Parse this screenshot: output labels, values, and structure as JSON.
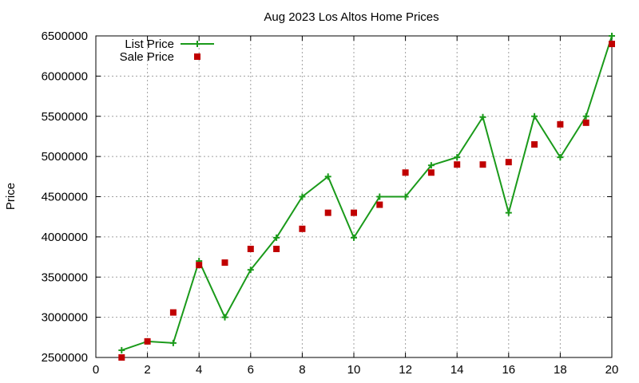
{
  "chart_data": {
    "type": "line",
    "title": "Aug 2023 Los Altos Home Prices",
    "xlabel": "",
    "ylabel": "Price",
    "xlim": [
      0,
      20
    ],
    "ylim": [
      2500000,
      6500000
    ],
    "xticks": [
      0,
      2,
      4,
      6,
      8,
      10,
      12,
      14,
      16,
      18,
      20
    ],
    "yticks": [
      2500000,
      3000000,
      3500000,
      4000000,
      4500000,
      5000000,
      5500000,
      6000000,
      6500000
    ],
    "grid": true,
    "legend_position": "top-left",
    "series": [
      {
        "name": "List Price",
        "style": "line-with-plus-markers",
        "color": "#1a9a1a",
        "x": [
          1,
          2,
          3,
          4,
          5,
          6,
          7,
          8,
          9,
          10,
          11,
          12,
          13,
          14,
          15,
          16,
          17,
          18,
          19,
          20
        ],
        "values": [
          2590000,
          2700000,
          2680000,
          3700000,
          3000000,
          3590000,
          3990000,
          4500000,
          4750000,
          3990000,
          4500000,
          4500000,
          4890000,
          4990000,
          5490000,
          4300000,
          5500000,
          4990000,
          5500000,
          6500000
        ]
      },
      {
        "name": "Sale Price",
        "style": "square-markers",
        "color": "#c00000",
        "x": [
          1,
          2,
          3,
          4,
          5,
          6,
          7,
          8,
          9,
          10,
          11,
          12,
          13,
          14,
          15,
          16,
          17,
          18,
          19,
          20
        ],
        "values": [
          2500000,
          2700000,
          3060000,
          3650000,
          3680000,
          3850000,
          3850000,
          4100000,
          4300000,
          4300000,
          4400000,
          4800000,
          4800000,
          4900000,
          4900000,
          4930000,
          5150000,
          5400000,
          5420000,
          6400000
        ]
      }
    ]
  }
}
